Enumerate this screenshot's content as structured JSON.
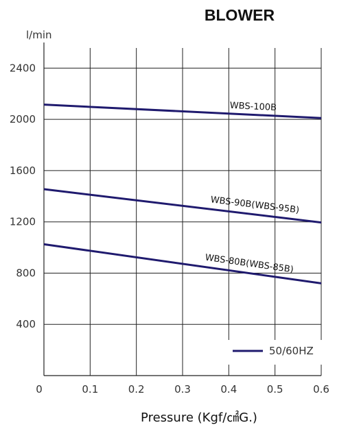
{
  "chart_data": {
    "type": "line",
    "title": "BLOWER",
    "xlabel": "Pressure (Kgf/㎠G.)",
    "ylabel": "l/min",
    "xlim": [
      0,
      0.6
    ],
    "ylim": [
      0,
      2600
    ],
    "x_ticks": [
      "0",
      "0.1",
      "0.2",
      "0.3",
      "0.4",
      "0.5",
      "0.6"
    ],
    "y_ticks": [
      "400",
      "800",
      "1200",
      "1600",
      "2000",
      "2400"
    ],
    "grid": true,
    "legend": {
      "label": "50/60HZ",
      "position": "bottom-right"
    },
    "series_color": "#1f1a6e",
    "series": [
      {
        "name": "WBS-100B",
        "x": [
          0,
          0.6
        ],
        "y": [
          2115,
          2010
        ]
      },
      {
        "name": "WBS-90B(WBS-95B)",
        "x": [
          0,
          0.6
        ],
        "y": [
          1455,
          1195
        ]
      },
      {
        "name": "WBS-80B(WBS-85B)",
        "x": [
          0,
          0.6
        ],
        "y": [
          1025,
          720
        ]
      }
    ]
  }
}
